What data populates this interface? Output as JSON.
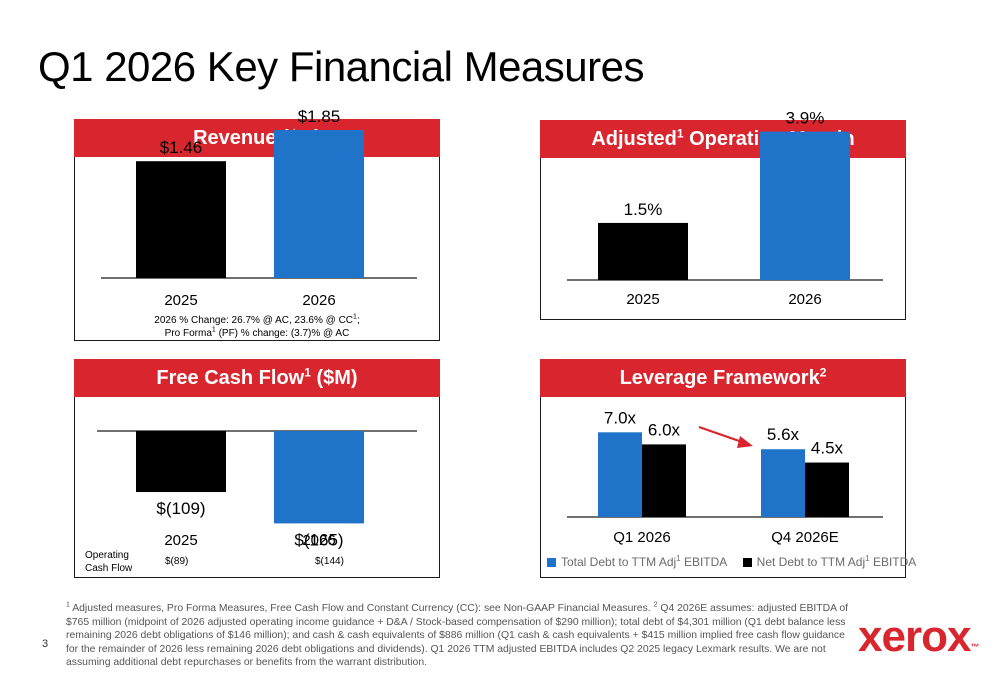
{
  "page": {
    "title": "Q1 2026 Key Financial Measures",
    "page_number": "3"
  },
  "colors": {
    "accent_red": "#d9262e",
    "bar_2025": "#000000",
    "bar_2026": "#1f73c8"
  },
  "chart_data": [
    {
      "type": "bar",
      "id": "revenue",
      "title_main": "Revenue ($B)",
      "categories": [
        "2025",
        "2026"
      ],
      "values": [
        1.46,
        1.85
      ],
      "data_labels": [
        "$1.46",
        "$1.85"
      ],
      "ylim": [
        0,
        2.1
      ],
      "note_line1_pre": "2026 % Change: 26.7% @ AC, 23.6% @ CC",
      "note_line1_sup": "1",
      "note_line1_post": ";",
      "note_line2_pre": "Pro Forma",
      "note_line2_sup": "1",
      "note_line2_post": " (PF) % change: (3.7)% @ AC"
    },
    {
      "type": "bar",
      "id": "margin",
      "title_main": "Adjusted",
      "title_sup": "1",
      "title_post": " Operating Margin",
      "categories": [
        "2025",
        "2026"
      ],
      "values": [
        1.5,
        3.9
      ],
      "data_labels": [
        "1.5%",
        "3.9%"
      ],
      "ylim": [
        0,
        4.6
      ]
    },
    {
      "type": "bar",
      "id": "fcf",
      "title_main": "Free Cash Flow",
      "title_sup": "1",
      "title_post": " ($M)",
      "categories": [
        "2025",
        "2026"
      ],
      "values": [
        -109,
        -165
      ],
      "data_labels": [
        "$(109)",
        "$(165)"
      ],
      "ylim": [
        -200,
        0
      ],
      "ocf_label_line1": "Operating",
      "ocf_label_line2": "Cash Flow",
      "ocf_values": [
        "$(89)",
        "$(144)"
      ]
    },
    {
      "type": "bar",
      "id": "leverage",
      "title_main": "Leverage Framework",
      "title_sup": "2",
      "categories": [
        "Q1 2026",
        "Q4 2026E"
      ],
      "series": [
        {
          "name": "Total Debt to TTM Adj",
          "name_sup": "1",
          "name_post": " EBITDA",
          "values": [
            7.0,
            5.6
          ],
          "labels": [
            "7.0x",
            "5.6x"
          ]
        },
        {
          "name": "Net Debt to TTM Adj",
          "name_sup": "1",
          "name_post": " EBITDA",
          "values": [
            6.0,
            4.5
          ],
          "labels": [
            "6.0x",
            "4.5x"
          ]
        }
      ],
      "ylim": [
        0,
        8.5
      ],
      "annotation": "arrow from Q1 2026 to Q4 2026E"
    }
  ],
  "footnote": {
    "sup1": "1",
    "text1": " Adjusted measures, Pro Forma Measures, Free Cash Flow and Constant Currency (CC): see Non-GAAP Financial Measures. ",
    "sup2": "2",
    "text2": " Q4 2026E assumes: adjusted EBITDA of $765 million (midpoint of 2026 adjusted operating income guidance + D&A / Stock-based compensation of $290 million); total debt of $4,301 million (Q1 debt balance less remaining 2026 debt obligations of $146 million); and cash & cash equivalents of $886 million (Q1 cash & cash equivalents + $415 million implied free cash flow guidance for the remainder of 2026 less remaining 2026 debt obligations and dividends). Q1 2026 TTM adjusted EBITDA includes Q2 2025 legacy Lexmark results. We are not assuming additional debt repurchases or benefits from the warrant distribution."
  },
  "logo": {
    "text": "xerox",
    "tm": "™"
  }
}
